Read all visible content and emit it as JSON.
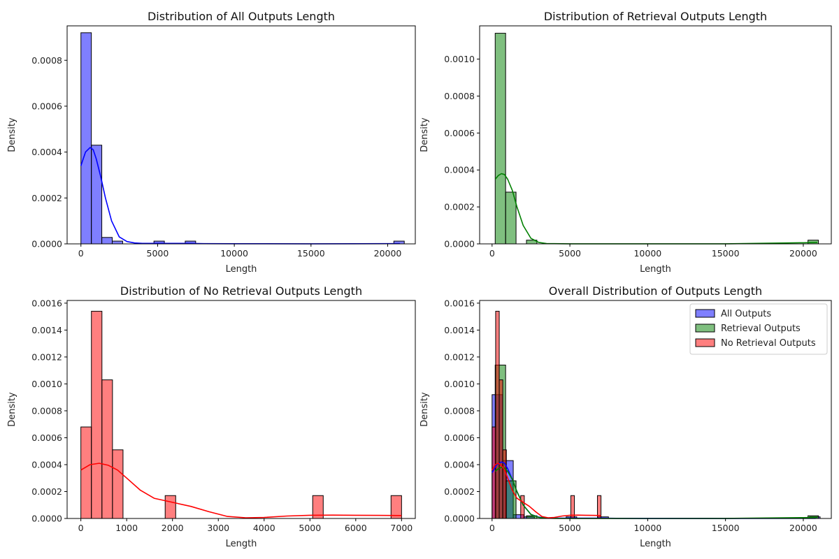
{
  "chart_data": [
    {
      "type": "histogram",
      "title": "Distribution of All Outputs Length",
      "xlabel": "Length",
      "ylabel": "Density",
      "xlim": [
        -900,
        21800
      ],
      "ylim": [
        0,
        0.00095
      ],
      "xticks": [
        0,
        5000,
        10000,
        15000,
        20000
      ],
      "xtick_labels": [
        "0",
        "5000",
        "10000",
        "15000",
        "20000"
      ],
      "yticks": [
        0,
        0.0002,
        0.0004,
        0.0006,
        0.0008
      ],
      "ytick_labels": [
        "0.0000",
        "0.0002",
        "0.0004",
        "0.0006",
        "0.0008"
      ],
      "series": [
        {
          "color": "#0000ff",
          "bins": [
            [
              0,
              680,
              0.00092
            ],
            [
              680,
              1360,
              0.00043
            ],
            [
              1360,
              2040,
              2.8e-05
            ],
            [
              2040,
              2720,
              1.2e-05
            ],
            [
              4760,
              5440,
              1.2e-05
            ],
            [
              6800,
              7480,
              1.2e-05
            ],
            [
              20400,
              21080,
              1.2e-05
            ]
          ],
          "kde_x": [
            0,
            300,
            600,
            800,
            1000,
            1300,
            1600,
            2000,
            2500,
            3000,
            3500,
            4000,
            5000,
            6000,
            7000,
            8000,
            10000,
            15000,
            20000,
            20800
          ],
          "kde_y": [
            0.00034,
            0.0004,
            0.00042,
            0.00041,
            0.00037,
            0.00029,
            0.0002,
            0.0001,
            3e-05,
            1e-05,
            4e-06,
            2e-06,
            2e-06,
            2e-06,
            2e-06,
            1e-06,
            5e-07,
            2e-07,
            1e-06,
            1e-06
          ]
        }
      ]
    },
    {
      "type": "histogram",
      "title": "Distribution of Retrieval Outputs Length",
      "xlabel": "Length",
      "ylabel": "Density",
      "xlim": [
        -800,
        21800
      ],
      "ylim": [
        0,
        0.00118
      ],
      "xticks": [
        0,
        5000,
        10000,
        15000,
        20000
      ],
      "xtick_labels": [
        "0",
        "5000",
        "10000",
        "15000",
        "20000"
      ],
      "yticks": [
        0,
        0.0002,
        0.0004,
        0.0006,
        0.0008,
        0.001
      ],
      "ytick_labels": [
        "0.0000",
        "0.0002",
        "0.0004",
        "0.0006",
        "0.0008",
        "0.0010"
      ],
      "series": [
        {
          "color": "#008000",
          "bins": [
            [
              200,
              870,
              0.00114
            ],
            [
              870,
              1540,
              0.00028
            ],
            [
              2210,
              2880,
              2e-05
            ],
            [
              20300,
              20970,
              2e-05
            ]
          ],
          "kde_x": [
            200,
            400,
            600,
            800,
            1000,
            1300,
            1600,
            2000,
            2500,
            3000,
            3500,
            4000,
            5000,
            7000,
            10000,
            15000,
            20000,
            20900
          ],
          "kde_y": [
            0.00035,
            0.00037,
            0.00038,
            0.000375,
            0.00035,
            0.00029,
            0.0002,
            0.0001,
            3e-05,
            8e-06,
            2e-06,
            1e-06,
            5e-07,
            3e-07,
            2e-07,
            4e-07,
            6e-06,
            8e-06
          ]
        }
      ]
    },
    {
      "type": "histogram",
      "title": "Distribution of No Retrieval Outputs Length",
      "xlabel": "Length",
      "ylabel": "Density",
      "xlim": [
        -300,
        7300
      ],
      "ylim": [
        0,
        0.00162
      ],
      "xticks": [
        0,
        1000,
        2000,
        3000,
        4000,
        5000,
        6000,
        7000
      ],
      "xtick_labels": [
        "0",
        "1000",
        "2000",
        "3000",
        "4000",
        "5000",
        "6000",
        "7000"
      ],
      "yticks": [
        0,
        0.0002,
        0.0004,
        0.0006,
        0.0008,
        0.001,
        0.0012,
        0.0014,
        0.0016
      ],
      "ytick_labels": [
        "0.0000",
        "0.0002",
        "0.0004",
        "0.0006",
        "0.0008",
        "0.0010",
        "0.0012",
        "0.0014",
        "0.0016"
      ],
      "series": [
        {
          "color": "#ff0000",
          "bins": [
            [
              0,
              230,
              0.00068
            ],
            [
              230,
              460,
              0.00154
            ],
            [
              460,
              690,
              0.00103
            ],
            [
              690,
              920,
              0.00051
            ],
            [
              1840,
              2070,
              0.00017
            ],
            [
              5060,
              5290,
              0.00017
            ],
            [
              6770,
              7000,
              0.00017
            ]
          ],
          "kde_x": [
            0,
            200,
            400,
            600,
            800,
            1000,
            1300,
            1600,
            2000,
            2400,
            2800,
            3200,
            3600,
            4000,
            4500,
            5000,
            5500,
            6000,
            6500,
            7000
          ],
          "kde_y": [
            0.00036,
            0.0004,
            0.00041,
            0.000395,
            0.00036,
            0.0003,
            0.00021,
            0.00015,
            0.00012,
            9e-05,
            5e-05,
            1.5e-05,
            5e-06,
            8e-06,
            1.8e-05,
            2.4e-05,
            2.5e-05,
            2.4e-05,
            2.3e-05,
            2.2e-05
          ]
        }
      ]
    },
    {
      "type": "histogram",
      "title": "Overall Distribution of Outputs Length",
      "xlabel": "Length",
      "ylabel": "Density",
      "xlim": [
        -800,
        21800
      ],
      "ylim": [
        0,
        0.00162
      ],
      "xticks": [
        0,
        5000,
        10000,
        15000,
        20000
      ],
      "xtick_labels": [
        "0",
        "5000",
        "10000",
        "15000",
        "20000"
      ],
      "yticks": [
        0,
        0.0002,
        0.0004,
        0.0006,
        0.0008,
        0.001,
        0.0012,
        0.0014,
        0.0016
      ],
      "ytick_labels": [
        "0.0000",
        "0.0002",
        "0.0004",
        "0.0006",
        "0.0008",
        "0.0010",
        "0.0012",
        "0.0014",
        "0.0016"
      ],
      "legend": {
        "position": "top-right",
        "entries": [
          "All Outputs",
          "Retrieval Outputs",
          "No Retrieval Outputs"
        ]
      },
      "series": [
        {
          "name": "All Outputs",
          "color": "#0000ff",
          "bins": [
            [
              0,
              680,
              0.00092
            ],
            [
              680,
              1360,
              0.00043
            ],
            [
              1360,
              2040,
              2.8e-05
            ],
            [
              2040,
              2720,
              1.2e-05
            ],
            [
              4760,
              5440,
              1.2e-05
            ],
            [
              6800,
              7480,
              1.2e-05
            ],
            [
              20400,
              21080,
              1.2e-05
            ]
          ],
          "kde_x": [
            0,
            300,
            600,
            800,
            1000,
            1300,
            1600,
            2000,
            2500,
            3000,
            3500,
            4000,
            5000,
            6000,
            7000,
            8000,
            10000,
            15000,
            20000,
            20800
          ],
          "kde_y": [
            0.00034,
            0.0004,
            0.00042,
            0.00041,
            0.00037,
            0.00029,
            0.0002,
            0.0001,
            3e-05,
            1e-05,
            4e-06,
            2e-06,
            2e-06,
            2e-06,
            2e-06,
            1e-06,
            5e-07,
            2e-07,
            1e-06,
            1e-06
          ]
        },
        {
          "name": "Retrieval Outputs",
          "color": "#008000",
          "bins": [
            [
              200,
              870,
              0.00114
            ],
            [
              870,
              1540,
              0.00028
            ],
            [
              2210,
              2880,
              2e-05
            ],
            [
              20300,
              20970,
              2e-05
            ]
          ],
          "kde_x": [
            200,
            400,
            600,
            800,
            1000,
            1300,
            1600,
            2000,
            2500,
            3000,
            3500,
            4000,
            5000,
            7000,
            10000,
            15000,
            20000,
            20900
          ],
          "kde_y": [
            0.00035,
            0.00037,
            0.00038,
            0.000375,
            0.00035,
            0.00029,
            0.0002,
            0.0001,
            3e-05,
            8e-06,
            2e-06,
            1e-06,
            5e-07,
            3e-07,
            2e-07,
            4e-07,
            6e-06,
            8e-06
          ]
        },
        {
          "name": "No Retrieval Outputs",
          "color": "#ff0000",
          "bins": [
            [
              0,
              230,
              0.00068
            ],
            [
              230,
              460,
              0.00154
            ],
            [
              460,
              690,
              0.00103
            ],
            [
              690,
              920,
              0.00051
            ],
            [
              1840,
              2070,
              0.00017
            ],
            [
              5060,
              5290,
              0.00017
            ],
            [
              6770,
              7000,
              0.00017
            ]
          ],
          "kde_x": [
            0,
            200,
            400,
            600,
            800,
            1000,
            1300,
            1600,
            2000,
            2400,
            2800,
            3200,
            3600,
            4000,
            4500,
            5000,
            5500,
            6000,
            6500,
            7000
          ],
          "kde_y": [
            0.00036,
            0.0004,
            0.00041,
            0.000395,
            0.00036,
            0.0003,
            0.00021,
            0.00015,
            0.00012,
            9e-05,
            5e-05,
            1.5e-05,
            5e-06,
            8e-06,
            1.8e-05,
            2.4e-05,
            2.5e-05,
            2.4e-05,
            2.3e-05,
            2.2e-05
          ]
        }
      ]
    }
  ]
}
